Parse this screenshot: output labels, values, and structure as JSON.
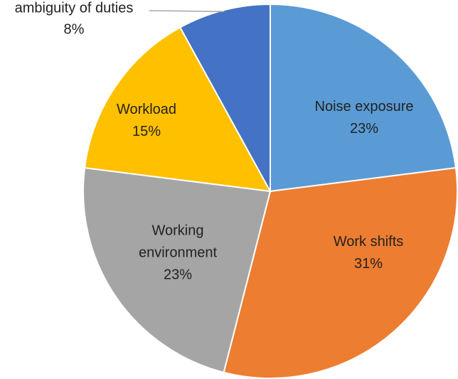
{
  "chart_data": {
    "type": "pie",
    "start_angle_deg": 0,
    "direction": "clockwise",
    "slices": [
      {
        "label": "Noise exposure",
        "lines": [
          "Noise exposure"
        ],
        "value": 23,
        "value_label": "23%",
        "color": "#5B9BD5",
        "label_position": "inside"
      },
      {
        "label": "Work shifts",
        "lines": [
          "Work shifts"
        ],
        "value": 31,
        "value_label": "31%",
        "color": "#ED7D31",
        "label_position": "inside"
      },
      {
        "label": "Working environment",
        "lines": [
          "Working",
          "environment"
        ],
        "value": 23,
        "value_label": "23%",
        "color": "#A5A5A5",
        "label_position": "inside"
      },
      {
        "label": "Workload",
        "lines": [
          "Workload"
        ],
        "value": 15,
        "value_label": "15%",
        "color": "#FFC000",
        "label_position": "inside"
      },
      {
        "label": "ambiguity of duties",
        "lines": [
          "ambiguity of duties"
        ],
        "value": 8,
        "value_label": "8%",
        "color": "#4472C4",
        "label_position": "outside-leader"
      }
    ]
  }
}
